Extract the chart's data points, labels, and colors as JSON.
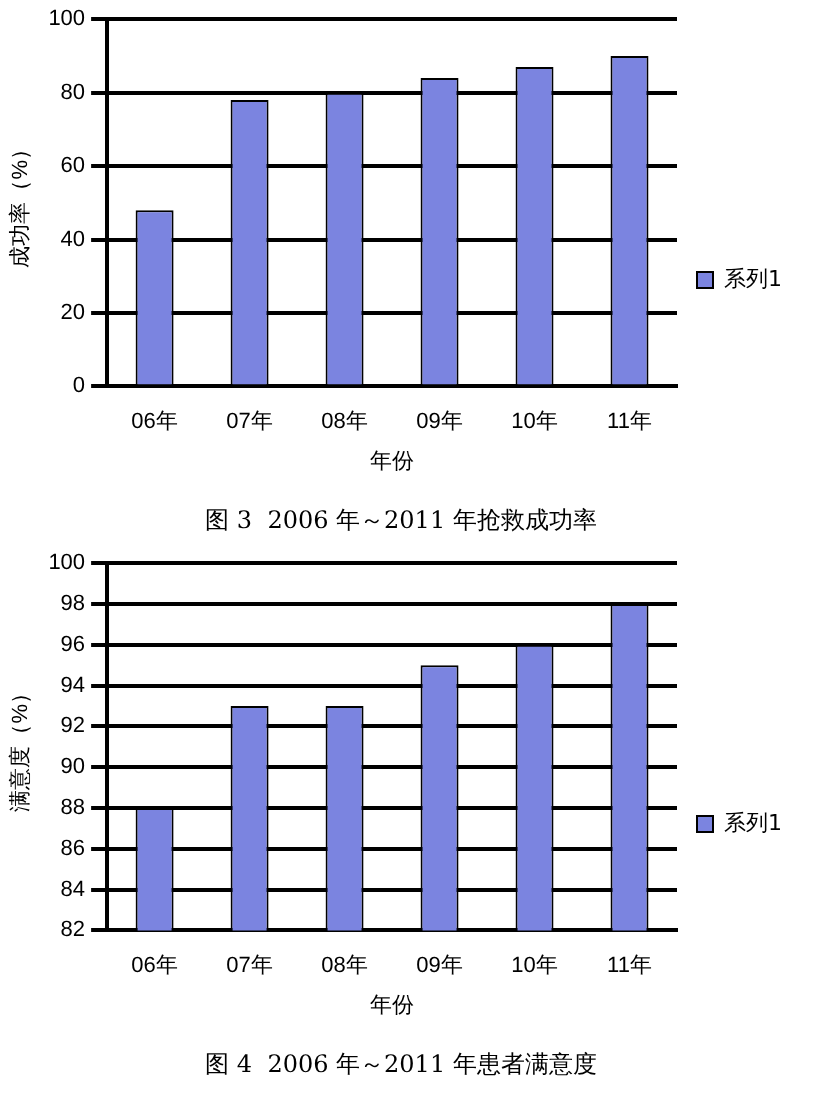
{
  "chart_data": [
    {
      "type": "bar",
      "title": "图 3  2006 年～2011 年抢救成功率",
      "xlabel": "年份",
      "ylabel": "成功率（%）",
      "categories": [
        "06年",
        "07年",
        "08年",
        "09年",
        "10年",
        "11年"
      ],
      "series": [
        {
          "name": "系列1",
          "color": "#7b84e0",
          "values": [
            48,
            78,
            80,
            84,
            87,
            90
          ]
        }
      ],
      "ylim": [
        0,
        100
      ],
      "yticks": [
        0,
        20,
        40,
        60,
        80,
        100
      ],
      "grid": "y",
      "legend": "right"
    },
    {
      "type": "bar",
      "title": "图 4  2006 年～2011 年患者满意度",
      "xlabel": "年份",
      "ylabel": "满意度（%）",
      "categories": [
        "06年",
        "07年",
        "08年",
        "09年",
        "10年",
        "11年"
      ],
      "series": [
        {
          "name": "系列1",
          "color": "#7b84e0",
          "values": [
            88,
            93,
            93,
            95,
            96,
            98
          ]
        }
      ],
      "ylim": [
        82,
        100
      ],
      "yticks": [
        82,
        84,
        86,
        88,
        90,
        92,
        94,
        96,
        98,
        100
      ],
      "grid": "y",
      "legend": "right"
    }
  ]
}
